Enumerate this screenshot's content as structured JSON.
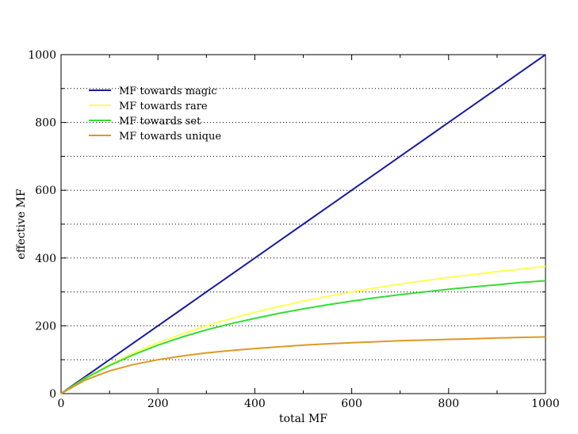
{
  "chart_data": {
    "type": "line",
    "title": "",
    "xlabel": "total MF",
    "ylabel": "effective MF",
    "xlim": [
      0,
      1000
    ],
    "ylim": [
      0,
      1000
    ],
    "xticks": [
      0,
      200,
      400,
      600,
      800,
      1000
    ],
    "yticks": [
      0,
      200,
      400,
      600,
      800,
      1000
    ],
    "grid": "horizontal dotted lines at every 100",
    "legend_position": "top-left",
    "x": [
      0,
      50,
      100,
      150,
      200,
      250,
      300,
      350,
      400,
      450,
      500,
      550,
      600,
      650,
      700,
      750,
      800,
      850,
      900,
      950,
      1000
    ],
    "series": [
      {
        "name": "MF towards magic",
        "color": "#1a1aa0",
        "values": [
          0,
          50,
          100,
          150,
          200,
          250,
          300,
          350,
          400,
          450,
          500,
          550,
          600,
          650,
          700,
          750,
          800,
          850,
          900,
          950,
          1000
        ]
      },
      {
        "name": "MF towards rare",
        "color": "#ffff55",
        "values": [
          0,
          46,
          86,
          120,
          150,
          176,
          200,
          221,
          240,
          257,
          273,
          287,
          300,
          312,
          323,
          333,
          343,
          351,
          360,
          367,
          375
        ]
      },
      {
        "name": "MF towards set",
        "color": "#33dd33",
        "values": [
          0,
          45,
          83,
          115,
          143,
          167,
          188,
          206,
          222,
          237,
          250,
          262,
          273,
          283,
          292,
          300,
          308,
          315,
          321,
          328,
          333
        ]
      },
      {
        "name": "MF towards unique",
        "color": "#dd9922",
        "values": [
          0,
          40,
          67,
          86,
          100,
          111,
          120,
          127,
          133,
          138,
          143,
          147,
          150,
          153,
          156,
          158,
          160,
          162,
          164,
          166,
          167
        ]
      }
    ]
  }
}
